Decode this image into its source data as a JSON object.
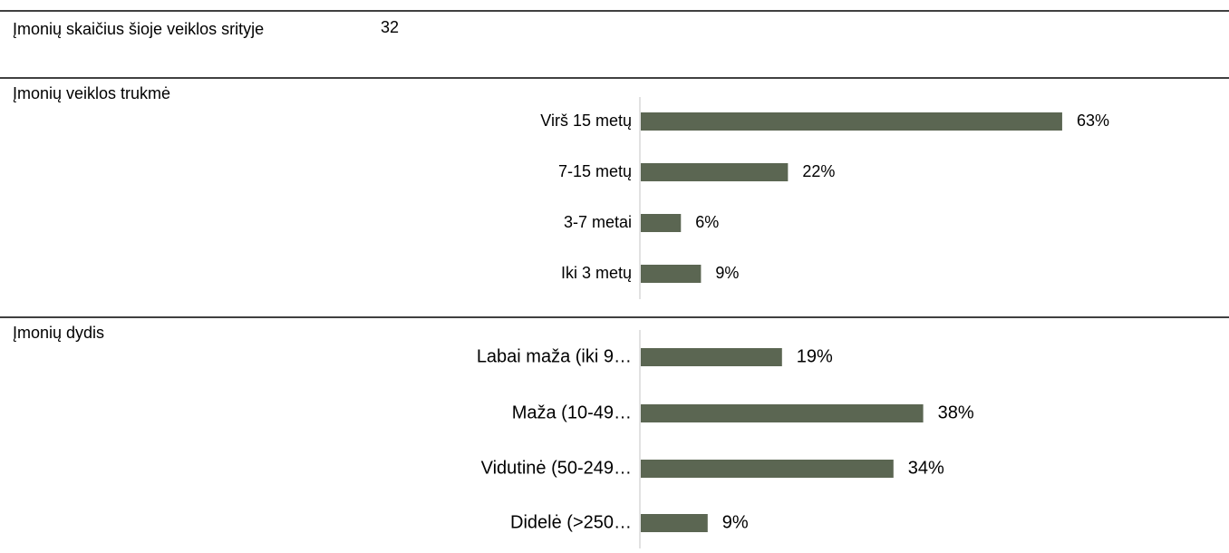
{
  "rows": [
    {
      "label": "Įmonių skaičius šioje veiklos srityje",
      "value": 32
    },
    {
      "label": "Įmonių veiklos trukmė",
      "chart": {
        "type": "bar",
        "color": "#5b6652",
        "categories": [
          "Virš 15 metų",
          "7-15 metų",
          "3-7 metai",
          "Iki 3 metų"
        ],
        "values": [
          63,
          22,
          6,
          9
        ],
        "value_labels": [
          "63%",
          "22%",
          "6%",
          "9%"
        ]
      }
    },
    {
      "label": "Įmonių dydis",
      "chart": {
        "type": "bar",
        "color": "#5b6652",
        "categories": [
          "Labai maža (iki 9…",
          "Maža (10-49…",
          "Vidutinė (50-249…",
          "Didelė (>250…"
        ],
        "values": [
          19,
          38,
          34,
          9
        ],
        "value_labels": [
          "19%",
          "38%",
          "34%",
          "9%"
        ]
      }
    }
  ]
}
